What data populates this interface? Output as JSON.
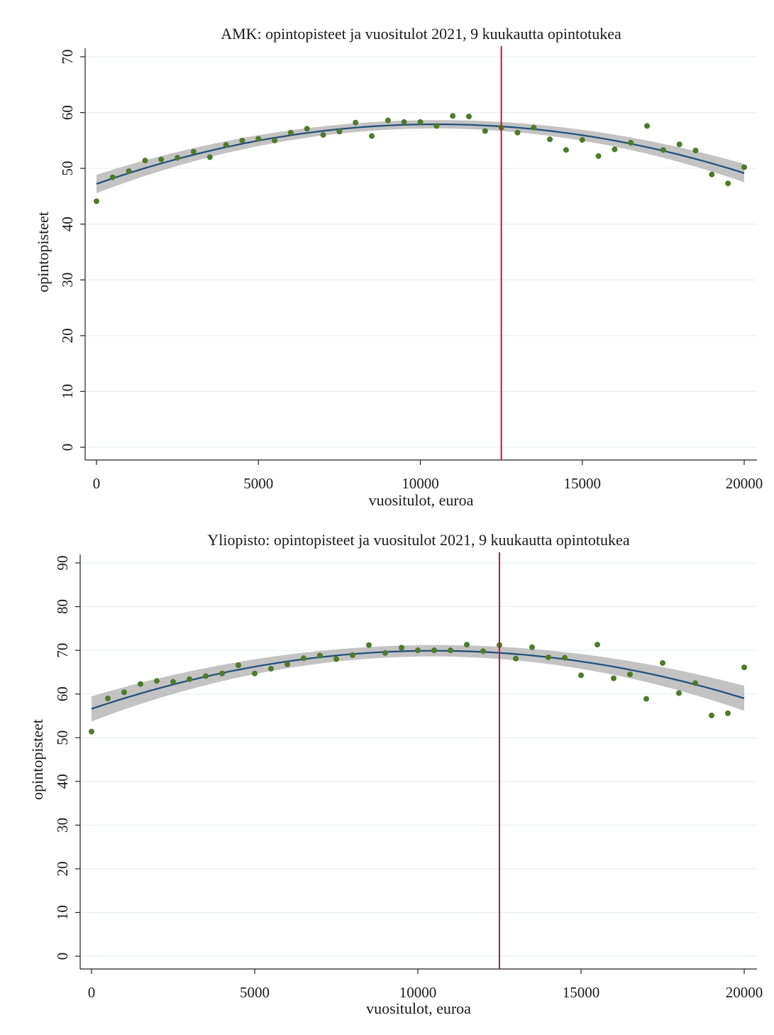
{
  "chart_data": [
    {
      "type": "scatter",
      "title": "AMK: opintopisteet ja vuositulot 2021, 9 kuukautta opintotukea",
      "xlabel": "vuositulot, euroa",
      "ylabel": "opintopisteet",
      "xlim": [
        0,
        20000
      ],
      "ylim": [
        0,
        70
      ],
      "xticks": [
        0,
        5000,
        10000,
        15000,
        20000
      ],
      "yticks": [
        0,
        10,
        20,
        30,
        40,
        50,
        60,
        70
      ],
      "grid": "horizontal",
      "vline": 12500,
      "colors": {
        "points": "#4f7a2c",
        "fit": "#1f4e79",
        "ci": "#b8b8b8",
        "vline": "#c0143c"
      },
      "series": [
        {
          "kind": "points",
          "x": [
            0,
            500,
            1000,
            1500,
            2000,
            2500,
            3000,
            3500,
            4000,
            4500,
            5000,
            5500,
            6000,
            6500,
            7000,
            7500,
            8000,
            8500,
            9000,
            9500,
            10000,
            10500,
            11000,
            11500,
            12000,
            12500,
            13000,
            13500,
            14000,
            14500,
            15000,
            15500,
            16000,
            16500,
            17000,
            17500,
            18000,
            18500,
            19000,
            19500,
            20000
          ],
          "y": [
            44.1,
            48.4,
            49.5,
            51.4,
            51.6,
            51.9,
            53.0,
            52.0,
            54.2,
            55.0,
            55.3,
            55.0,
            56.4,
            57.1,
            56.0,
            56.6,
            58.2,
            55.8,
            58.6,
            58.3,
            58.3,
            57.6,
            59.4,
            59.3,
            56.7,
            57.3,
            56.4,
            57.3,
            55.2,
            53.3,
            55.1,
            52.2,
            53.4,
            54.6,
            57.6,
            53.3,
            54.3,
            53.2,
            48.9,
            47.3,
            50.2
          ]
        },
        {
          "kind": "fit",
          "x": [
            0,
            20000
          ],
          "quadratic": {
            "a": 47.2,
            "peak_x": 10500,
            "peak_y": 57.9
          },
          "ci_halfwidth": 0.75
        }
      ]
    },
    {
      "type": "scatter",
      "title": "Yliopisto: opintopisteet ja vuositulot 2021, 9 kuukautta opintotukea",
      "xlabel": "vuositulot, euroa",
      "ylabel": "opintopisteet",
      "xlim": [
        0,
        20000
      ],
      "ylim": [
        0,
        90
      ],
      "xticks": [
        0,
        5000,
        10000,
        15000,
        20000
      ],
      "yticks": [
        0,
        10,
        20,
        30,
        40,
        50,
        60,
        70,
        80,
        90
      ],
      "grid": "horizontal",
      "vline": 12500,
      "colors": {
        "points": "#4f7a2c",
        "fit": "#1f4e79",
        "ci": "#b8b8b8",
        "vline": "#c0143c"
      },
      "series": [
        {
          "kind": "points",
          "x": [
            0,
            500,
            1000,
            1500,
            2000,
            2500,
            3000,
            3500,
            4000,
            4500,
            5000,
            5500,
            6000,
            6500,
            7000,
            7500,
            8000,
            8500,
            9000,
            9500,
            10000,
            10500,
            11000,
            11500,
            12000,
            12500,
            13000,
            13500,
            14000,
            14500,
            15000,
            15500,
            16000,
            16500,
            17000,
            17500,
            18000,
            18500,
            19000,
            19500,
            20000
          ],
          "y": [
            51.4,
            59.0,
            60.4,
            62.3,
            63.0,
            62.8,
            63.4,
            64.1,
            64.7,
            66.6,
            64.7,
            65.8,
            66.8,
            68.2,
            68.8,
            68.0,
            68.9,
            71.2,
            69.4,
            70.6,
            70.0,
            70.0,
            70.0,
            71.3,
            69.8,
            71.2,
            68.1,
            70.7,
            68.4,
            68.3,
            64.3,
            71.3,
            63.6,
            64.5,
            58.9,
            67.1,
            60.2,
            62.5,
            55.1,
            55.6,
            66.1
          ]
        },
        {
          "kind": "fit",
          "x": [
            0,
            20000
          ],
          "quadratic": {
            "a": 56.6,
            "peak_x": 10500,
            "peak_y": 69.9
          },
          "ci_halfwidth": 1.3
        }
      ]
    }
  ]
}
